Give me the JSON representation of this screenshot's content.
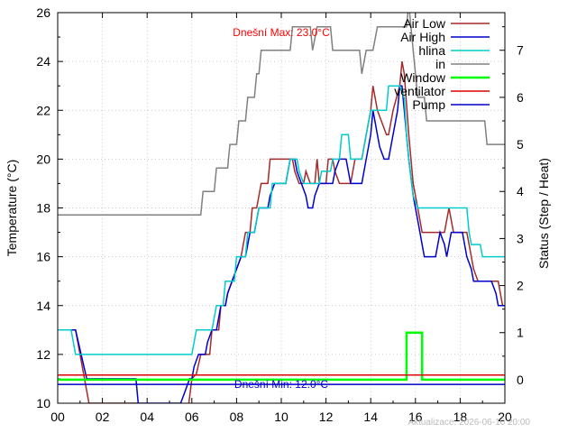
{
  "chart_data": {
    "type": "line",
    "xlabel": "",
    "ylabel": "Temperature (°C)",
    "y2label": "Status (Step / Heat)",
    "xlim": [
      0,
      20
    ],
    "ylim": [
      10,
      26
    ],
    "y2lim": [
      -0.5,
      7.8
    ],
    "grid": true,
    "legend_position": "top-right",
    "x_tick_labels": [
      "00",
      "02",
      "04",
      "06",
      "08",
      "10",
      "12",
      "14",
      "16",
      "18",
      "20"
    ],
    "x_ticks": [
      0,
      2,
      4,
      6,
      8,
      10,
      12,
      14,
      16,
      18,
      20
    ],
    "y_ticks": [
      10,
      12,
      14,
      16,
      18,
      20,
      22,
      24,
      26
    ],
    "y_tick_labels": [
      "10",
      "12",
      "14",
      "16",
      "18",
      "20",
      "22",
      "24",
      "26"
    ],
    "y2_ticks": [
      0,
      1,
      2,
      3,
      4,
      5,
      6,
      7
    ],
    "y2_tick_labels": [
      "0",
      "1",
      "2",
      "3",
      "4",
      "5",
      "6",
      "7"
    ],
    "annotations": {
      "max_text": "Dnešní Max: 23.0°C",
      "max_color": "#ff0000",
      "min_text": "Dnešní Min: 12.0°C",
      "min_color": "#0000cc",
      "footer": "Aktualizace: 2026-06-10 20:00"
    },
    "series": [
      {
        "name": "Air Low",
        "color": "#a52a2a",
        "axis": "y",
        "points": [
          [
            0,
            13
          ],
          [
            0.8,
            13
          ],
          [
            1.4,
            10
          ],
          [
            3.6,
            10
          ],
          [
            3.8,
            9
          ],
          [
            5.6,
            9
          ],
          [
            5.8,
            9.5
          ],
          [
            6.0,
            11
          ],
          [
            6.2,
            11.2
          ],
          [
            6.4,
            12
          ],
          [
            6.8,
            12
          ],
          [
            6.9,
            13
          ],
          [
            7.2,
            13
          ],
          [
            7.3,
            14
          ],
          [
            7.5,
            14
          ],
          [
            7.6,
            14.5
          ],
          [
            7.8,
            15
          ],
          [
            8.0,
            15.5
          ],
          [
            8.2,
            16
          ],
          [
            8.3,
            16.5
          ],
          [
            8.4,
            17
          ],
          [
            8.6,
            17
          ],
          [
            8.7,
            18
          ],
          [
            8.9,
            18
          ],
          [
            9.0,
            18.5
          ],
          [
            9.1,
            19
          ],
          [
            9.4,
            19
          ],
          [
            9.5,
            20
          ],
          [
            10.5,
            20
          ],
          [
            10.6,
            19.5
          ],
          [
            10.8,
            19
          ],
          [
            11.0,
            19
          ],
          [
            11.1,
            19.5
          ],
          [
            11.3,
            19
          ],
          [
            11.5,
            19
          ],
          [
            11.6,
            20
          ],
          [
            11.7,
            19
          ],
          [
            11.8,
            19
          ],
          [
            12.0,
            19
          ],
          [
            12.1,
            20
          ],
          [
            12.3,
            20
          ],
          [
            12.4,
            19.5
          ],
          [
            12.6,
            19
          ],
          [
            13.1,
            19
          ],
          [
            13.3,
            20
          ],
          [
            13.6,
            20
          ],
          [
            13.8,
            21
          ],
          [
            14.0,
            22
          ],
          [
            14.1,
            23
          ],
          [
            14.3,
            22
          ],
          [
            14.5,
            21.5
          ],
          [
            14.7,
            21
          ],
          [
            14.8,
            21
          ],
          [
            15.0,
            22
          ],
          [
            15.3,
            23
          ],
          [
            15.4,
            24
          ],
          [
            15.5,
            23.5
          ],
          [
            15.7,
            21
          ],
          [
            15.9,
            19
          ],
          [
            16.0,
            18.5
          ],
          [
            16.1,
            18
          ],
          [
            16.2,
            17.5
          ],
          [
            16.3,
            17
          ],
          [
            17.3,
            17
          ],
          [
            17.4,
            17.5
          ],
          [
            17.5,
            18
          ],
          [
            17.6,
            17.5
          ],
          [
            17.7,
            17
          ],
          [
            18.3,
            17
          ],
          [
            18.4,
            16.5
          ],
          [
            18.5,
            16
          ],
          [
            18.6,
            15.5
          ],
          [
            18.8,
            15
          ],
          [
            19.7,
            15
          ],
          [
            19.8,
            14.5
          ],
          [
            19.9,
            14
          ],
          [
            20,
            14
          ]
        ]
      },
      {
        "name": "Air High",
        "color": "#0000cc",
        "axis": "y",
        "points": [
          [
            0,
            13
          ],
          [
            0.8,
            13
          ],
          [
            1.3,
            11
          ],
          [
            3.5,
            11
          ],
          [
            3.6,
            10
          ],
          [
            5.5,
            10
          ],
          [
            5.7,
            10.5
          ],
          [
            5.9,
            11
          ],
          [
            6.0,
            11
          ],
          [
            6.1,
            11.5
          ],
          [
            6.3,
            12
          ],
          [
            6.6,
            12
          ],
          [
            6.7,
            12.5
          ],
          [
            6.9,
            13
          ],
          [
            7.1,
            13
          ],
          [
            7.3,
            14
          ],
          [
            7.5,
            14
          ],
          [
            7.6,
            14.5
          ],
          [
            7.8,
            15
          ],
          [
            8.0,
            15.5
          ],
          [
            8.2,
            16
          ],
          [
            8.4,
            16
          ],
          [
            8.5,
            16.5
          ],
          [
            8.6,
            17
          ],
          [
            8.8,
            17
          ],
          [
            8.9,
            17.5
          ],
          [
            9.0,
            18
          ],
          [
            9.4,
            18
          ],
          [
            9.5,
            18.5
          ],
          [
            9.7,
            19
          ],
          [
            10.2,
            19
          ],
          [
            10.3,
            19.5
          ],
          [
            10.4,
            20
          ],
          [
            10.6,
            20
          ],
          [
            10.7,
            19.5
          ],
          [
            10.9,
            19
          ],
          [
            11.1,
            18.5
          ],
          [
            11.2,
            18
          ],
          [
            11.4,
            18
          ],
          [
            11.5,
            18.5
          ],
          [
            11.7,
            19
          ],
          [
            11.9,
            19
          ],
          [
            12.3,
            19
          ],
          [
            12.4,
            19.5
          ],
          [
            12.6,
            20
          ],
          [
            12.9,
            20
          ],
          [
            13.0,
            19.5
          ],
          [
            13.1,
            19
          ],
          [
            13.6,
            19
          ],
          [
            13.8,
            20
          ],
          [
            14.0,
            21
          ],
          [
            14.1,
            22
          ],
          [
            14.3,
            21
          ],
          [
            14.4,
            20.5
          ],
          [
            14.6,
            20
          ],
          [
            14.8,
            20
          ],
          [
            15.0,
            21
          ],
          [
            15.2,
            22
          ],
          [
            15.3,
            23
          ],
          [
            15.4,
            23
          ],
          [
            15.5,
            22
          ],
          [
            15.7,
            20
          ],
          [
            15.9,
            18.5
          ],
          [
            16.0,
            18
          ],
          [
            16.1,
            17.5
          ],
          [
            16.2,
            17
          ],
          [
            16.3,
            16.5
          ],
          [
            16.4,
            16
          ],
          [
            16.9,
            16
          ],
          [
            17.1,
            17
          ],
          [
            17.3,
            16.5
          ],
          [
            17.4,
            16
          ],
          [
            17.5,
            16.5
          ],
          [
            17.6,
            17
          ],
          [
            18.1,
            17
          ],
          [
            18.3,
            16
          ],
          [
            18.5,
            15.5
          ],
          [
            18.6,
            15
          ],
          [
            19.4,
            15
          ],
          [
            19.6,
            14.5
          ],
          [
            19.7,
            14
          ],
          [
            20,
            14
          ]
        ]
      },
      {
        "name": "hlina",
        "color": "#00cccc",
        "axis": "y",
        "points": [
          [
            0,
            13
          ],
          [
            0.6,
            13
          ],
          [
            0.8,
            12
          ],
          [
            6.0,
            12
          ],
          [
            6.2,
            13
          ],
          [
            6.9,
            13
          ],
          [
            7.1,
            14
          ],
          [
            7.4,
            14
          ],
          [
            7.5,
            15
          ],
          [
            7.9,
            15
          ],
          [
            8.0,
            16
          ],
          [
            8.4,
            16
          ],
          [
            8.5,
            17
          ],
          [
            8.8,
            17
          ],
          [
            8.9,
            17.5
          ],
          [
            9.0,
            18
          ],
          [
            9.5,
            18
          ],
          [
            9.6,
            19
          ],
          [
            10.2,
            19
          ],
          [
            10.3,
            19.5
          ],
          [
            10.4,
            20
          ],
          [
            10.7,
            20
          ],
          [
            10.8,
            19.5
          ],
          [
            11.0,
            19
          ],
          [
            11.7,
            19
          ],
          [
            11.8,
            19.5
          ],
          [
            12.2,
            19.5
          ],
          [
            12.3,
            20
          ],
          [
            12.6,
            20
          ],
          [
            12.7,
            21
          ],
          [
            13.0,
            21
          ],
          [
            13.1,
            20
          ],
          [
            13.6,
            20
          ],
          [
            13.8,
            21
          ],
          [
            14.0,
            22
          ],
          [
            14.7,
            22
          ],
          [
            14.8,
            23
          ],
          [
            15.0,
            23
          ],
          [
            15.3,
            23
          ],
          [
            15.5,
            22.5
          ],
          [
            15.6,
            21
          ],
          [
            15.7,
            20
          ],
          [
            15.9,
            18.5
          ],
          [
            16.1,
            18
          ],
          [
            18.3,
            18
          ],
          [
            18.4,
            17
          ],
          [
            18.5,
            16.5
          ],
          [
            18.9,
            16.5
          ],
          [
            19.0,
            16
          ],
          [
            20,
            16
          ]
        ]
      },
      {
        "name": "in",
        "color": "#808080",
        "axis": "y2",
        "points": [
          [
            0,
            3.5
          ],
          [
            6.4,
            3.5
          ],
          [
            6.5,
            4
          ],
          [
            7.0,
            4
          ],
          [
            7.1,
            4.5
          ],
          [
            7.6,
            4.5
          ],
          [
            7.7,
            5
          ],
          [
            8.0,
            5
          ],
          [
            8.1,
            5.5
          ],
          [
            8.4,
            5.5
          ],
          [
            8.5,
            6
          ],
          [
            8.8,
            6
          ],
          [
            8.9,
            6.5
          ],
          [
            9.0,
            6.5
          ],
          [
            9.1,
            7
          ],
          [
            10.4,
            7
          ],
          [
            10.5,
            7.5
          ],
          [
            11.3,
            7.5
          ],
          [
            11.4,
            7
          ],
          [
            11.6,
            7.5
          ],
          [
            12.2,
            7.5
          ],
          [
            12.3,
            7
          ],
          [
            13.5,
            7
          ],
          [
            13.6,
            6.5
          ],
          [
            13.8,
            7
          ],
          [
            14.1,
            7
          ],
          [
            14.3,
            7.5
          ],
          [
            15.6,
            7.5
          ],
          [
            15.7,
            8
          ],
          [
            15.8,
            7.5
          ],
          [
            15.9,
            7
          ],
          [
            16.0,
            6.5
          ],
          [
            16.1,
            6
          ],
          [
            16.4,
            6
          ],
          [
            16.5,
            5.5
          ],
          [
            19.1,
            5.5
          ],
          [
            19.2,
            5
          ],
          [
            20,
            5
          ]
        ]
      },
      {
        "name": "Window",
        "color": "#00ff00",
        "axis": "y2",
        "points": [
          [
            0,
            0
          ],
          [
            15.6,
            0
          ],
          [
            15.6,
            1
          ],
          [
            16.3,
            1
          ],
          [
            16.3,
            0
          ],
          [
            20,
            0
          ]
        ]
      },
      {
        "name": "ventilator",
        "color": "#dd0000",
        "axis": "y2",
        "points": [
          [
            0,
            0.1
          ],
          [
            20,
            0.1
          ]
        ]
      },
      {
        "name": "Pump",
        "color": "#0000cc",
        "axis": "y2",
        "points": [
          [
            0,
            -0.1
          ],
          [
            20,
            -0.1
          ]
        ]
      }
    ]
  }
}
